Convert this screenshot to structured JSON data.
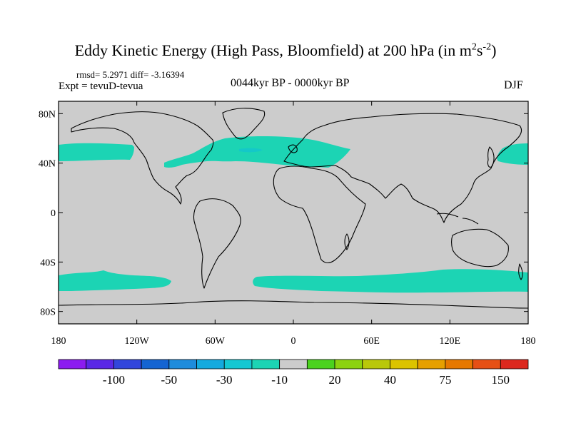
{
  "title": {
    "text": "Eddy Kinetic Energy (High Pass, Bloomfield) at 200 hPa (in m",
    "sup1": "2",
    "mid": "s",
    "sup2": "-2",
    "close": ")"
  },
  "stats": "rmsd= 5.2971 diff= -3.16394",
  "experiment": "Expt = tevuD-tevua",
  "period_label": "0044kyr BP - 0000kyr BP",
  "season": "DJF",
  "colors": {
    "land_ocean_neutral": "#cccccc",
    "positive_anomaly_band": "#1cd4b4",
    "band_core": "#10c8c8",
    "coastline": "#000000"
  },
  "map": {
    "lat_labels": [
      "80N",
      "40N",
      "0",
      "40S",
      "80S"
    ],
    "lat_values": [
      80,
      40,
      0,
      -40,
      -80
    ],
    "lon_labels": [
      "180",
      "120W",
      "60W",
      "0",
      "60E",
      "120E",
      "180"
    ],
    "lon_values": [
      -180,
      -120,
      -60,
      0,
      60,
      120,
      180
    ],
    "lat_range": [
      -90,
      90
    ],
    "lon_range": [
      -180,
      180
    ],
    "features": [
      {
        "name": "north-pacific-east-band",
        "lon": [
          -180,
          -106
        ],
        "lat": [
          37,
          50
        ]
      },
      {
        "name": "north-atlantic-band",
        "lon": [
          -93,
          50
        ],
        "lat": [
          31,
          55
        ]
      },
      {
        "name": "north-pacific-west-band",
        "lon": [
          142,
          180
        ],
        "lat": [
          37,
          52
        ]
      },
      {
        "name": "southern-ocean-band-west",
        "lon": [
          -180,
          -97
        ],
        "lat": [
          -62,
          -48
        ]
      },
      {
        "name": "southern-ocean-band-east",
        "lon": [
          -15,
          180
        ],
        "lat": [
          -62,
          -44
        ]
      }
    ]
  },
  "colorbar": {
    "colors": [
      "#8c1cf0",
      "#5a28e6",
      "#3246dc",
      "#1464d2",
      "#1e8cdc",
      "#14aade",
      "#14c8d2",
      "#1cd4b4",
      "#cccccc",
      "#4bd21e",
      "#8cd20f",
      "#b9c80a",
      "#dcc300",
      "#e6a000",
      "#e67800",
      "#e65014",
      "#dc281e"
    ],
    "labels": [
      "-100",
      "-50",
      "-30",
      "-10",
      "20",
      "40",
      "75",
      "150"
    ]
  }
}
